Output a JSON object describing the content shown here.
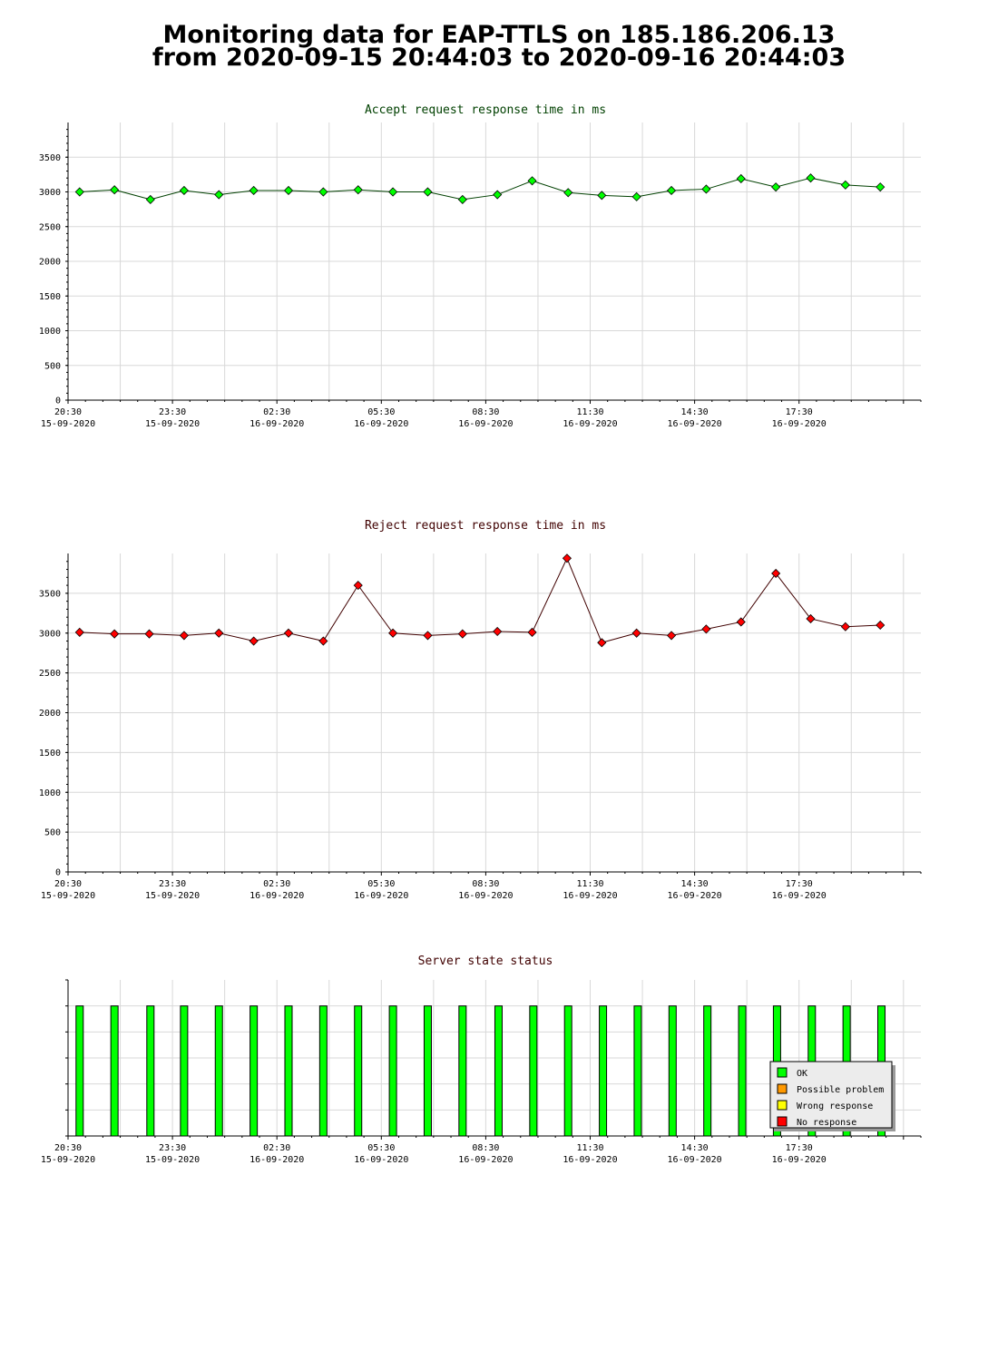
{
  "page": {
    "title_line1": "Monitoring data for EAP-TTLS on 185.186.206.13",
    "title_line2": "from 2020-09-15 20:44:03 to 2020-09-16 20:44:03"
  },
  "colors": {
    "accept_marker": "#00ff00",
    "accept_line": "#004000",
    "accept_title": "#004000",
    "reject_marker": "#ff0000",
    "reject_line": "#400000",
    "reject_title": "#400000",
    "status_title": "#400000",
    "grid": "#d8d8d8",
    "ok": "#00ff00",
    "possible_problem": "#ff9900",
    "wrong_response": "#ffff00",
    "no_response": "#ff0000",
    "legend_bg": "#ececec"
  },
  "chart_data": [
    {
      "id": "accept",
      "type": "line",
      "title": "Accept request response time in ms",
      "ylim": [
        0,
        4000
      ],
      "yticks": [
        0,
        500,
        1000,
        1500,
        2000,
        2500,
        3000,
        3500
      ],
      "xlim_hours": [
        0,
        24.5
      ],
      "xticks": [
        {
          "time": "20:30",
          "date": "15-09-2020"
        },
        {
          "time": "23:30",
          "date": "15-09-2020"
        },
        {
          "time": "02:30",
          "date": "16-09-2020"
        },
        {
          "time": "05:30",
          "date": "16-09-2020"
        },
        {
          "time": "08:30",
          "date": "16-09-2020"
        },
        {
          "time": "11:30",
          "date": "16-09-2020"
        },
        {
          "time": "14:30",
          "date": "16-09-2020"
        },
        {
          "time": "17:30",
          "date": "16-09-2020"
        }
      ],
      "grid": true,
      "x": [
        "20:50",
        "21:50",
        "22:52",
        "23:50",
        "00:50",
        "01:50",
        "02:50",
        "03:50",
        "04:50",
        "05:50",
        "06:50",
        "07:50",
        "08:50",
        "09:50",
        "10:52",
        "11:50",
        "12:50",
        "13:50",
        "14:50",
        "15:50",
        "16:50",
        "17:50",
        "18:50",
        "19:50"
      ],
      "values": [
        3000,
        3030,
        2890,
        3020,
        2960,
        3020,
        3020,
        3000,
        3030,
        3000,
        3000,
        2890,
        2960,
        3160,
        2990,
        2950,
        2930,
        3020,
        3040,
        3190,
        3070,
        3200,
        3100,
        3070
      ]
    },
    {
      "id": "reject",
      "type": "line",
      "title": "Reject request response time in ms",
      "ylim": [
        0,
        4000
      ],
      "yticks": [
        0,
        500,
        1000,
        1500,
        2000,
        2500,
        3000,
        3500
      ],
      "xlim_hours": [
        0,
        24.5
      ],
      "xticks": [
        {
          "time": "20:30",
          "date": "15-09-2020"
        },
        {
          "time": "23:30",
          "date": "15-09-2020"
        },
        {
          "time": "02:30",
          "date": "16-09-2020"
        },
        {
          "time": "05:30",
          "date": "16-09-2020"
        },
        {
          "time": "08:30",
          "date": "16-09-2020"
        },
        {
          "time": "11:30",
          "date": "16-09-2020"
        },
        {
          "time": "14:30",
          "date": "16-09-2020"
        },
        {
          "time": "17:30",
          "date": "16-09-2020"
        }
      ],
      "grid": true,
      "x": [
        "20:50",
        "21:50",
        "22:50",
        "23:50",
        "00:50",
        "01:50",
        "02:50",
        "03:50",
        "04:50",
        "05:50",
        "06:50",
        "07:50",
        "08:50",
        "09:50",
        "10:50",
        "11:50",
        "12:50",
        "13:50",
        "14:50",
        "15:50",
        "16:50",
        "17:50",
        "18:50",
        "19:50"
      ],
      "values": [
        3010,
        2990,
        2990,
        2970,
        3000,
        2900,
        3000,
        2900,
        3600,
        3000,
        2970,
        2990,
        3020,
        3010,
        3940,
        2880,
        3000,
        2970,
        3050,
        3140,
        3750,
        3180,
        3080,
        3100
      ]
    },
    {
      "id": "status",
      "type": "bar",
      "title": "Server state status",
      "xlim_hours": [
        0,
        24.5
      ],
      "xticks": [
        {
          "time": "20:30",
          "date": "15-09-2020"
        },
        {
          "time": "23:30",
          "date": "15-09-2020"
        },
        {
          "time": "02:30",
          "date": "16-09-2020"
        },
        {
          "time": "05:30",
          "date": "16-09-2020"
        },
        {
          "time": "08:30",
          "date": "16-09-2020"
        },
        {
          "time": "11:30",
          "date": "16-09-2020"
        },
        {
          "time": "14:30",
          "date": "16-09-2020"
        },
        {
          "time": "17:30",
          "date": "16-09-2020"
        }
      ],
      "grid": true,
      "x": [
        "20:50",
        "21:50",
        "22:52",
        "23:50",
        "00:50",
        "01:50",
        "02:50",
        "03:50",
        "04:50",
        "05:50",
        "06:50",
        "07:50",
        "08:52",
        "09:52",
        "10:52",
        "11:52",
        "12:52",
        "13:52",
        "14:52",
        "15:52",
        "16:52",
        "17:52",
        "18:52",
        "19:52"
      ],
      "states": [
        "OK",
        "OK",
        "OK",
        "OK",
        "OK",
        "OK",
        "OK",
        "OK",
        "OK",
        "OK",
        "OK",
        "OK",
        "OK",
        "OK",
        "OK",
        "OK",
        "OK",
        "OK",
        "OK",
        "OK",
        "OK",
        "OK",
        "OK",
        "OK"
      ],
      "legend_placement": "bottom-right",
      "legend": [
        {
          "label": "OK",
          "color_key": "ok"
        },
        {
          "label": "Possible problem",
          "color_key": "possible_problem"
        },
        {
          "label": "Wrong response",
          "color_key": "wrong_response"
        },
        {
          "label": "No response",
          "color_key": "no_response"
        }
      ]
    }
  ]
}
